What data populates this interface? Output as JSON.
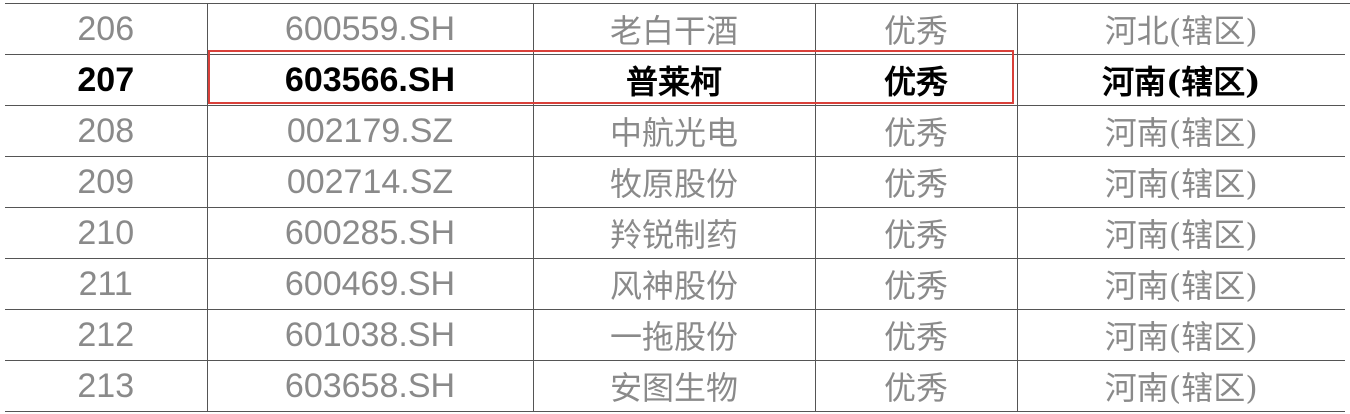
{
  "rows": [
    {
      "index": "206",
      "code": "600559.SH",
      "name": "老白干酒",
      "rating": "优秀",
      "region": "河北(辖区)"
    },
    {
      "index": "207",
      "code": "603566.SH",
      "name": "普莱柯",
      "rating": "优秀",
      "region": "河南(辖区)",
      "selected": true
    },
    {
      "index": "208",
      "code": "002179.SZ",
      "name": "中航光电",
      "rating": "优秀",
      "region": "河南(辖区)"
    },
    {
      "index": "209",
      "code": "002714.SZ",
      "name": "牧原股份",
      "rating": "优秀",
      "region": "河南(辖区)"
    },
    {
      "index": "210",
      "code": "600285.SH",
      "name": "羚锐制药",
      "rating": "优秀",
      "region": "河南(辖区)"
    },
    {
      "index": "211",
      "code": "600469.SH",
      "name": "风神股份",
      "rating": "优秀",
      "region": "河南(辖区)"
    },
    {
      "index": "212",
      "code": "601038.SH",
      "name": "一拖股份",
      "rating": "优秀",
      "region": "河南(辖区)"
    },
    {
      "index": "213",
      "code": "603658.SH",
      "name": "安图生物",
      "rating": "优秀",
      "region": "河南(辖区)"
    }
  ],
  "colors": {
    "highlight_border": "#d9403a",
    "text_normal": "#8a8a8a",
    "text_selected": "#000000"
  }
}
